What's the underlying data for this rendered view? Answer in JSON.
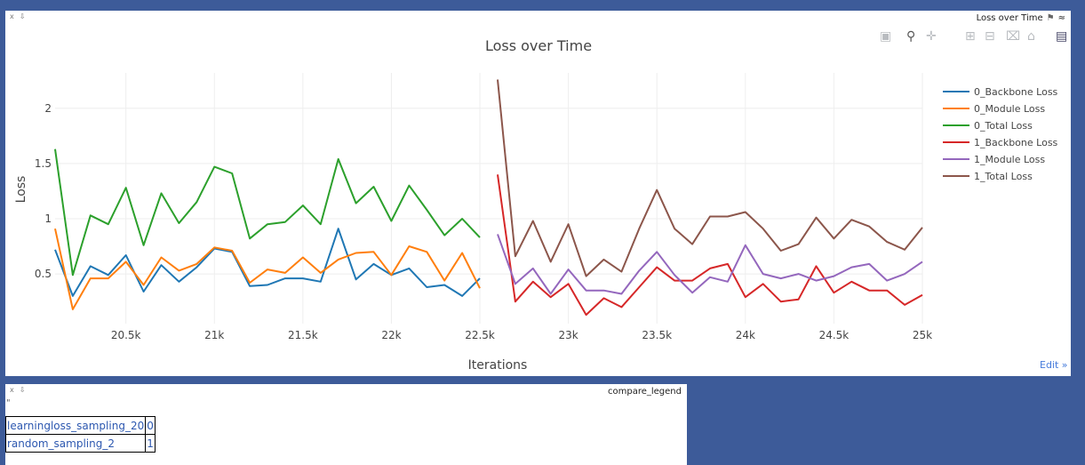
{
  "pane1": {
    "title": "Loss over Time",
    "close": "x",
    "pin": "⇩",
    "edit": "Edit »"
  },
  "pane2": {
    "title": "compare_legend",
    "close": "x",
    "pin": "⇩",
    "quote": "\"",
    "rows": [
      {
        "name": "learningloss_sampling_20",
        "value": "0"
      },
      {
        "name": "random_sampling_2",
        "value": "1"
      }
    ]
  },
  "modebar": [
    "camera-icon",
    "zoom-icon",
    "pan-icon",
    "zoom-in-icon",
    "zoom-out-icon",
    "autoscale-icon",
    "home-icon",
    "plotly-logo-icon"
  ],
  "chart_data": {
    "type": "line",
    "title": "Loss over Time",
    "xlabel": "Iterations",
    "ylabel": "Loss",
    "xlim": [
      20100,
      25000
    ],
    "ylim": [
      0.05,
      2.32
    ],
    "xticks": [
      20500,
      21000,
      21500,
      22000,
      22500,
      23000,
      23500,
      24000,
      24500,
      25000
    ],
    "xtick_labels": [
      "20.5k",
      "21k",
      "21.5k",
      "22k",
      "22.5k",
      "23k",
      "23.5k",
      "24k",
      "24.5k",
      "25k"
    ],
    "yticks": [
      0.5,
      1,
      1.5,
      2
    ],
    "ytick_labels": [
      "0.5",
      "1",
      "1.5",
      "2"
    ],
    "grid": true,
    "legend": "top-right",
    "series": [
      {
        "name": "0_Backbone Loss",
        "color": "#1f77b4",
        "x": [
          20100,
          20200,
          20300,
          20400,
          20500,
          20600,
          20700,
          20800,
          20900,
          21000,
          21100,
          21200,
          21300,
          21400,
          21500,
          21600,
          21700,
          21800,
          21900,
          22000,
          22100,
          22200,
          22300,
          22400,
          22500
        ],
        "y": [
          0.72,
          0.3,
          0.57,
          0.49,
          0.67,
          0.34,
          0.58,
          0.43,
          0.56,
          0.73,
          0.7,
          0.39,
          0.4,
          0.46,
          0.46,
          0.43,
          0.91,
          0.45,
          0.59,
          0.49,
          0.55,
          0.38,
          0.4,
          0.3,
          0.46
        ]
      },
      {
        "name": "0_Module Loss",
        "color": "#ff7f0e",
        "x": [
          20100,
          20200,
          20300,
          20400,
          20500,
          20600,
          20700,
          20800,
          20900,
          21000,
          21100,
          21200,
          21300,
          21400,
          21500,
          21600,
          21700,
          21800,
          21900,
          22000,
          22100,
          22200,
          22300,
          22400,
          22500
        ],
        "y": [
          0.91,
          0.18,
          0.46,
          0.46,
          0.61,
          0.4,
          0.65,
          0.53,
          0.59,
          0.74,
          0.71,
          0.42,
          0.54,
          0.51,
          0.65,
          0.51,
          0.63,
          0.69,
          0.7,
          0.49,
          0.75,
          0.7,
          0.44,
          0.69,
          0.37
        ]
      },
      {
        "name": "0_Total Loss",
        "color": "#2ca02c",
        "x": [
          20100,
          20200,
          20300,
          20400,
          20500,
          20600,
          20700,
          20800,
          20900,
          21000,
          21100,
          21200,
          21300,
          21400,
          21500,
          21600,
          21700,
          21800,
          21900,
          22000,
          22100,
          22200,
          22300,
          22400,
          22500
        ],
        "y": [
          1.63,
          0.49,
          1.03,
          0.95,
          1.28,
          0.76,
          1.23,
          0.96,
          1.15,
          1.47,
          1.41,
          0.82,
          0.95,
          0.97,
          1.12,
          0.95,
          1.54,
          1.14,
          1.29,
          0.98,
          1.3,
          1.08,
          0.85,
          1.0,
          0.83
        ]
      },
      {
        "name": "1_Backbone Loss",
        "color": "#d62728",
        "x": [
          22600,
          22700,
          22800,
          22900,
          23000,
          23100,
          23200,
          23300,
          23400,
          23500,
          23600,
          23700,
          23800,
          23900,
          24000,
          24100,
          24200,
          24300,
          24400,
          24500,
          24600,
          24700,
          24800,
          24900,
          25000
        ],
        "y": [
          1.4,
          0.25,
          0.43,
          0.29,
          0.41,
          0.13,
          0.28,
          0.2,
          0.38,
          0.56,
          0.44,
          0.44,
          0.55,
          0.59,
          0.29,
          0.41,
          0.25,
          0.27,
          0.57,
          0.33,
          0.43,
          0.35,
          0.35,
          0.22,
          0.31
        ]
      },
      {
        "name": "1_Module Loss",
        "color": "#9467bd",
        "x": [
          22600,
          22700,
          22800,
          22900,
          23000,
          23100,
          23200,
          23300,
          23400,
          23500,
          23600,
          23700,
          23800,
          23900,
          24000,
          24100,
          24200,
          24300,
          24400,
          24500,
          24600,
          24700,
          24800,
          24900,
          25000
        ],
        "y": [
          0.86,
          0.41,
          0.55,
          0.32,
          0.54,
          0.35,
          0.35,
          0.32,
          0.53,
          0.7,
          0.49,
          0.33,
          0.47,
          0.43,
          0.76,
          0.5,
          0.46,
          0.5,
          0.44,
          0.48,
          0.56,
          0.59,
          0.44,
          0.5,
          0.61
        ]
      },
      {
        "name": "1_Total Loss",
        "color": "#8c564b",
        "x": [
          22600,
          22700,
          22800,
          22900,
          23000,
          23100,
          23200,
          23300,
          23400,
          23500,
          23600,
          23700,
          23800,
          23900,
          24000,
          24100,
          24200,
          24300,
          24400,
          24500,
          24600,
          24700,
          24800,
          24900,
          25000
        ],
        "y": [
          2.26,
          0.66,
          0.98,
          0.61,
          0.95,
          0.48,
          0.63,
          0.52,
          0.91,
          1.26,
          0.91,
          0.77,
          1.02,
          1.02,
          1.06,
          0.91,
          0.71,
          0.77,
          1.01,
          0.82,
          0.99,
          0.93,
          0.79,
          0.72,
          0.92
        ]
      }
    ]
  }
}
